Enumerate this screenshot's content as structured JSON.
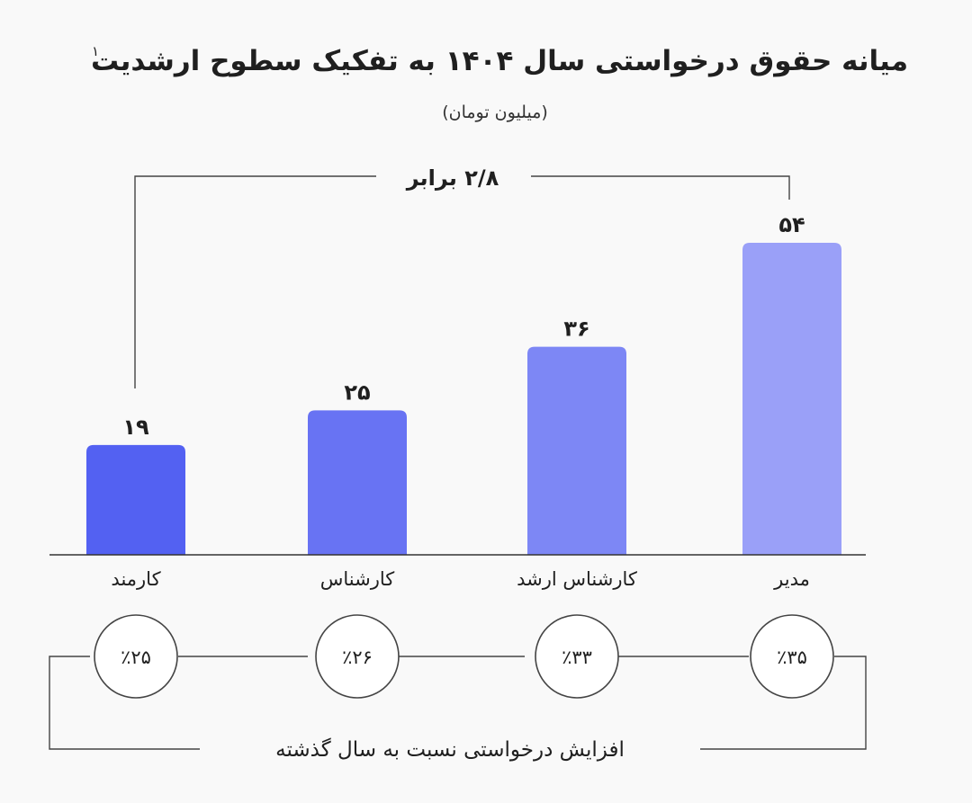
{
  "chart_data": {
    "type": "bar",
    "title": "میانه حقوق درخواستی سال ۱۴۰۴ به تفکیک سطوح ارشدیت",
    "title_note": "۱",
    "subtitle": "(میلیون تومان)",
    "categories": [
      "کارمند",
      "کارشناس",
      "کارشناس ارشد",
      "مدیر"
    ],
    "values": [
      19,
      25,
      36,
      54
    ],
    "value_labels": [
      "۱۹",
      "۲۵",
      "۳۶",
      "۵۴"
    ],
    "bar_colors": [
      "#5361f2",
      "#6873f3",
      "#7d87f5",
      "#9aa0f8"
    ],
    "ylim": [
      0,
      54
    ],
    "grid": false,
    "ratio_label": "۲/۸ برابر",
    "growth_labels": [
      "٪۲۵",
      "٪۲۶",
      "٪۳۳",
      "٪۳۵"
    ],
    "growth_values": [
      25,
      26,
      33,
      35
    ],
    "growth_caption": "افزایش درخواستی نسبت به سال گذشته"
  }
}
